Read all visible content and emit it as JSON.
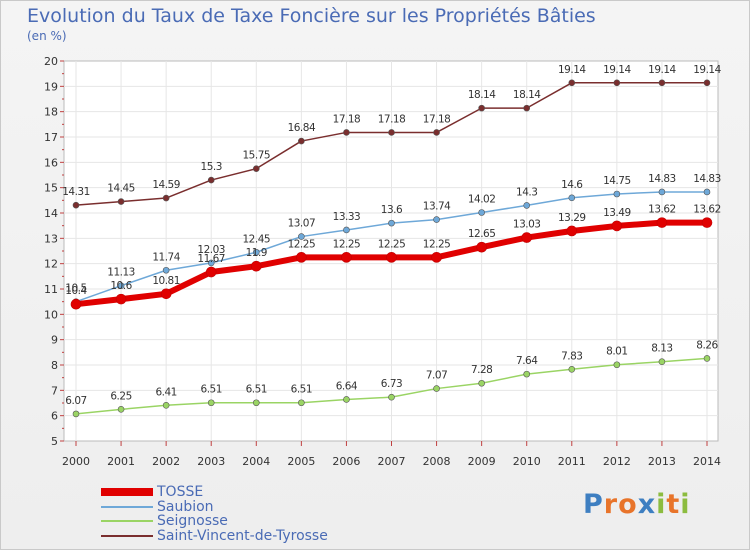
{
  "title": "Evolution du Taux de Taxe Foncière sur les Propriétés Bâties",
  "unit_label": "(en %)",
  "logo": {
    "text": "Proxiti",
    "letters": [
      {
        "ch": "P",
        "color": "#3e7fc1"
      },
      {
        "ch": "r",
        "color": "#e8742a"
      },
      {
        "ch": "o",
        "color": "#e8742a"
      },
      {
        "ch": "x",
        "color": "#3e7fc1"
      },
      {
        "ch": "i",
        "color": "#8cbc3f"
      },
      {
        "ch": "t",
        "color": "#e8742a"
      },
      {
        "ch": "i",
        "color": "#8cbc3f"
      }
    ]
  },
  "chart_data": {
    "type": "line",
    "x": [
      2000,
      2001,
      2002,
      2003,
      2004,
      2005,
      2006,
      2007,
      2008,
      2009,
      2010,
      2011,
      2012,
      2013,
      2014
    ],
    "ylim": [
      5,
      20
    ],
    "yticks": [
      5,
      6,
      7,
      8,
      9,
      10,
      11,
      12,
      13,
      14,
      15,
      16,
      17,
      18,
      19,
      20
    ],
    "grid": true,
    "legend_position": "bottom-left",
    "series": [
      {
        "name": "TOSSE",
        "color": "#e00000",
        "width": 6,
        "marker": 5,
        "values": [
          10.4,
          10.6,
          10.81,
          11.67,
          11.9,
          12.25,
          12.25,
          12.25,
          12.25,
          12.65,
          13.03,
          13.29,
          13.49,
          13.62,
          13.62
        ],
        "labels": [
          "10.4",
          "10.6",
          "10.81",
          "11.67",
          "11.9",
          "12.25",
          "12.25",
          "12.25",
          "12.25",
          "12.65",
          "13.03",
          "13.29",
          "13.49",
          "13.62",
          "13.62"
        ]
      },
      {
        "name": "Saubion",
        "color": "#6ea8d8",
        "width": 1.5,
        "marker": 3,
        "values": [
          10.5,
          11.13,
          11.74,
          12.03,
          12.45,
          13.07,
          13.33,
          13.6,
          13.74,
          14.02,
          14.3,
          14.6,
          14.75,
          14.83,
          14.83
        ],
        "labels": [
          "10.5",
          "11.13",
          "11.74",
          "12.03",
          "12.45",
          "13.07",
          "13.33",
          "13.6",
          "13.74",
          "14.02",
          "14.3",
          "14.6",
          "14.75",
          "14.83",
          "14.83"
        ]
      },
      {
        "name": "Seignosse",
        "color": "#9ad464",
        "width": 1.5,
        "marker": 3,
        "values": [
          6.07,
          6.25,
          6.41,
          6.51,
          6.51,
          6.51,
          6.64,
          6.73,
          7.07,
          7.28,
          7.64,
          7.83,
          8.01,
          8.13,
          8.26
        ],
        "labels": [
          "6.07",
          "6.25",
          "6.41",
          "6.51",
          "6.51",
          "6.51",
          "6.64",
          "6.73",
          "7.07",
          "7.28",
          "7.64",
          "7.83",
          "8.01",
          "8.13",
          "8.26"
        ]
      },
      {
        "name": "Saint-Vincent-de-Tyrosse",
        "color": "#7a2e2e",
        "width": 1.5,
        "marker": 3,
        "values": [
          14.31,
          14.45,
          14.59,
          15.3,
          15.75,
          16.84,
          17.18,
          17.18,
          17.18,
          18.14,
          18.14,
          19.14,
          19.14,
          19.14,
          19.14
        ],
        "labels": [
          "14.31",
          "14.45",
          "14.59",
          "15.3",
          "15.75",
          "16.84",
          "17.18",
          "17.18",
          "17.18",
          "18.14",
          "18.14",
          "19.14",
          "19.14",
          "19.14",
          "19.14"
        ]
      }
    ]
  }
}
